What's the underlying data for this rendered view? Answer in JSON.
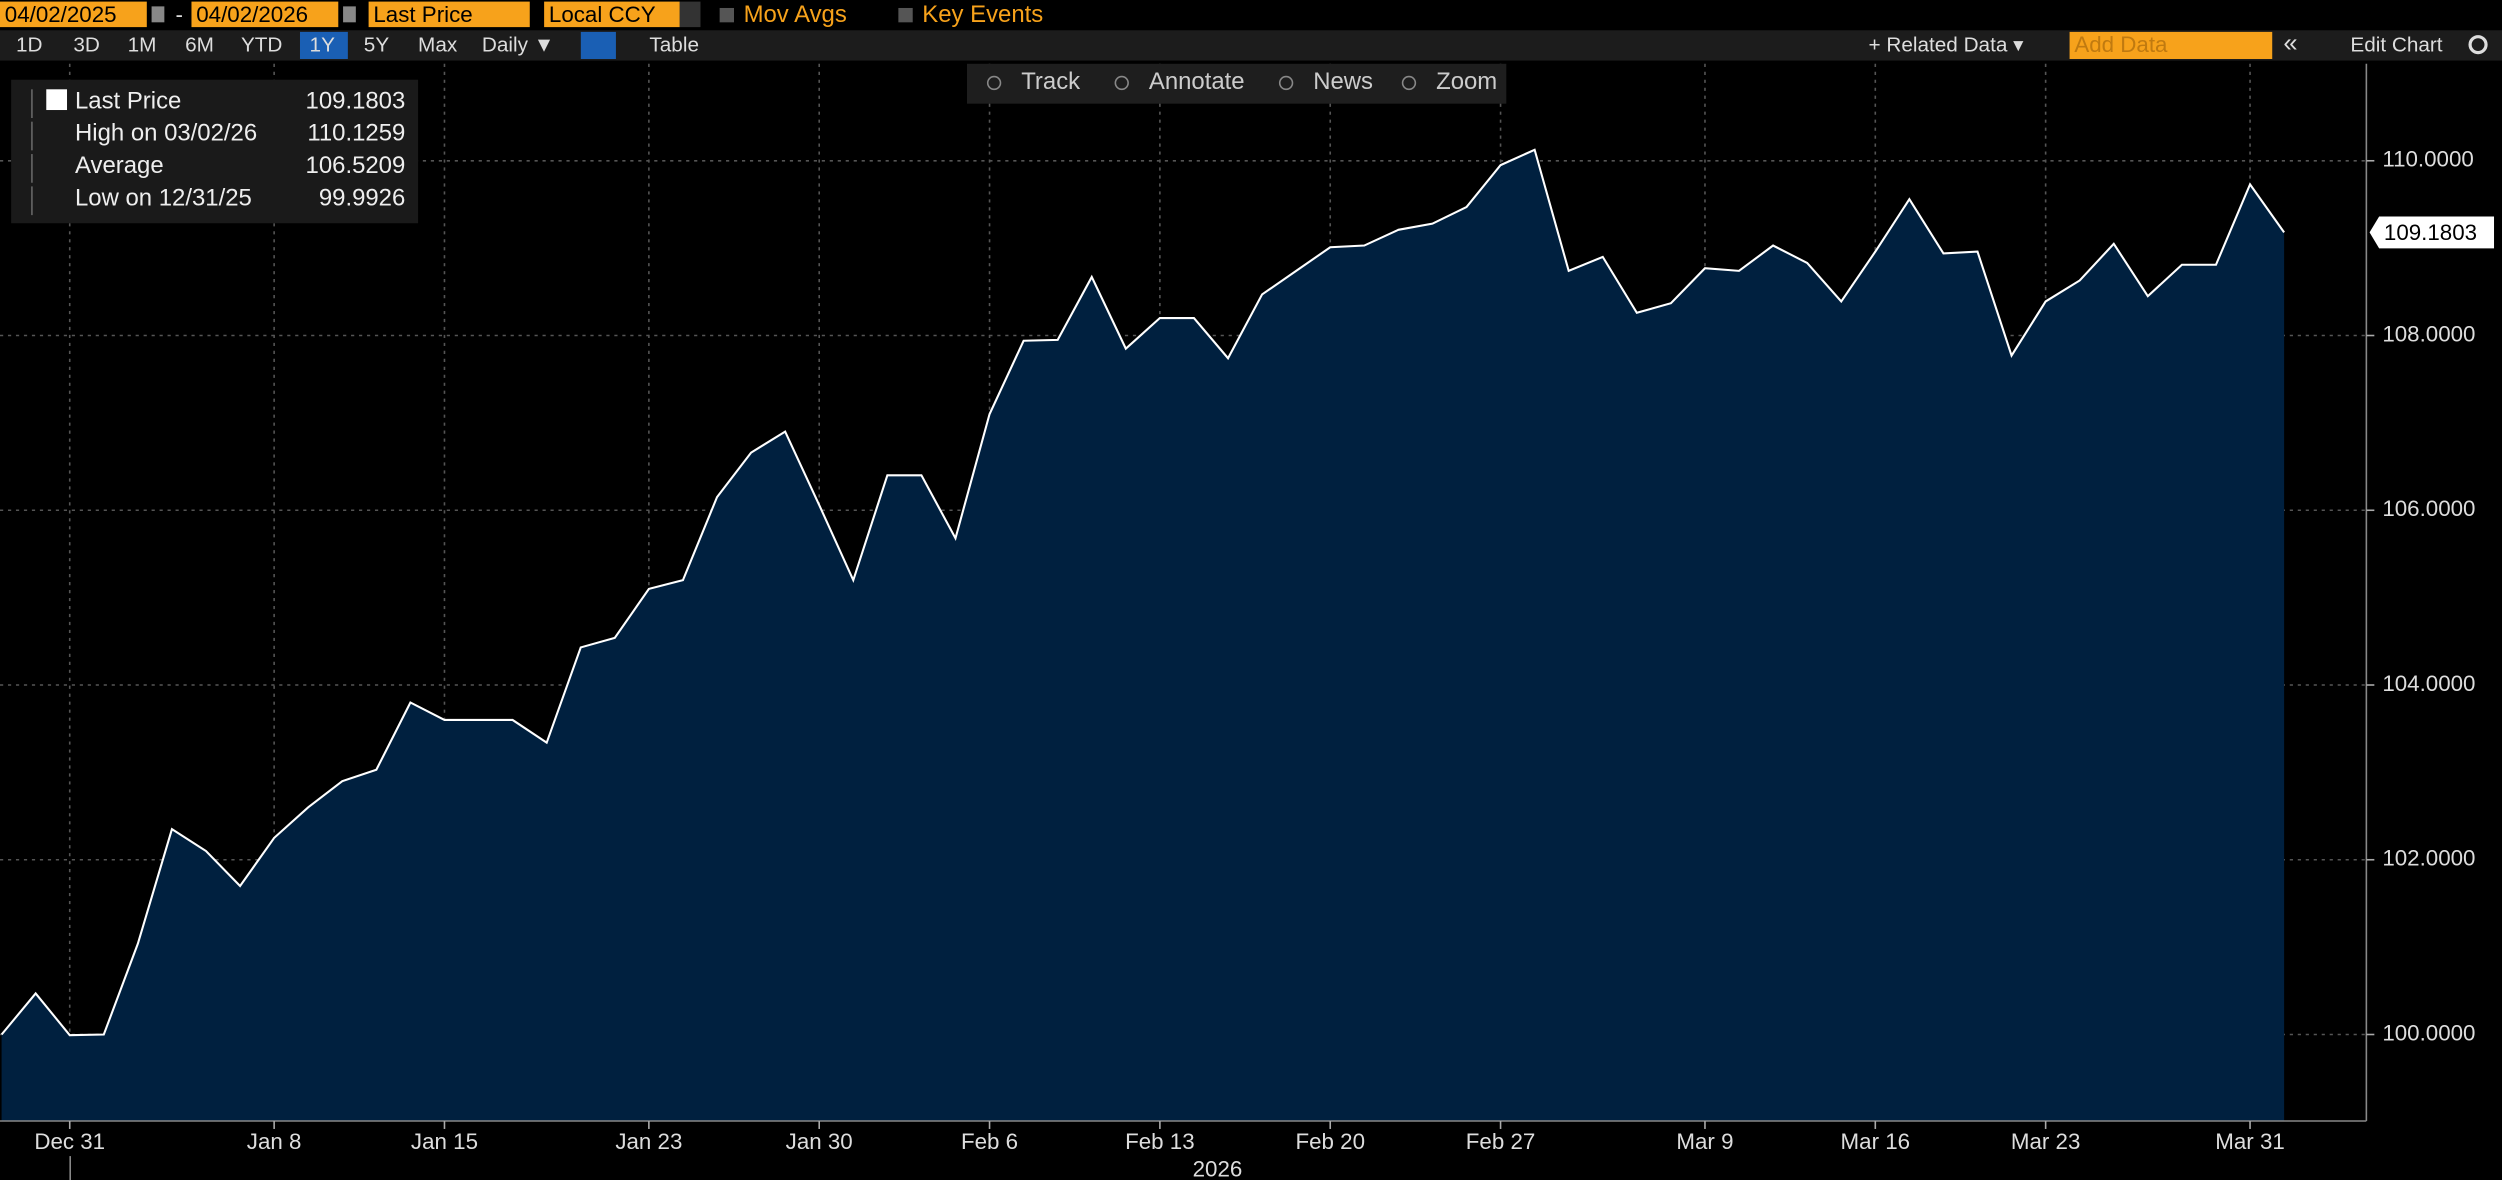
{
  "toolbar": {
    "start_date": "04/02/2025",
    "separator": "-",
    "end_date": "04/02/2026",
    "field": "Last Price",
    "currency": "Local CCY",
    "mov_avgs": "Mov Avgs",
    "key_events": "Key Events",
    "periods": [
      "1D",
      "3D",
      "1M",
      "6M",
      "YTD",
      "1Y",
      "5Y",
      "Max"
    ],
    "selected_period": "1Y",
    "frequency": "Daily ▼",
    "table": "Table",
    "related_data": "+ Related Data ▾",
    "add_data": "Add Data",
    "collapse": "«",
    "edit_chart": "Edit Chart",
    "tools": [
      "Track",
      "Annotate",
      "News",
      "Zoom"
    ]
  },
  "chart_data": {
    "type": "area",
    "categories": [
      null,
      null,
      "Dec 31",
      null,
      null,
      null,
      null,
      null,
      "Jan 8",
      null,
      null,
      null,
      null,
      "Jan 15",
      null,
      null,
      null,
      null,
      null,
      "Jan 23",
      null,
      null,
      null,
      null,
      "Jan 30",
      null,
      null,
      null,
      null,
      "Feb 6",
      null,
      null,
      null,
      null,
      "Feb 13",
      null,
      null,
      null,
      null,
      "Feb 20",
      null,
      null,
      null,
      null,
      "Feb 27",
      null,
      null,
      null,
      null,
      null,
      "Mar 9",
      null,
      null,
      null,
      null,
      "Mar 16",
      null,
      null,
      null,
      null,
      "Mar 23",
      null,
      null,
      null,
      null,
      null,
      "Mar 31",
      null
    ],
    "x_year": "2026",
    "values": [
      100.0,
      100.47,
      99.9926,
      100.0,
      101.04,
      102.35,
      102.1,
      101.7,
      102.25,
      102.6,
      102.9,
      103.03,
      103.8,
      103.6,
      103.6,
      103.6,
      103.34,
      104.43,
      104.54,
      105.1,
      105.2,
      106.15,
      106.66,
      106.9,
      106.06,
      105.2,
      106.4,
      106.4,
      105.68,
      107.1,
      107.94,
      107.95,
      108.67,
      107.85,
      108.2,
      108.2,
      107.74,
      108.47,
      108.74,
      109.01,
      109.03,
      109.21,
      109.28,
      109.47,
      109.95,
      110.1259,
      108.74,
      108.9,
      108.26,
      108.37,
      108.77,
      108.74,
      109.03,
      108.83,
      108.39,
      108.96,
      109.56,
      108.94,
      108.96,
      107.77,
      108.39,
      108.63,
      109.05,
      108.45,
      108.81,
      108.81,
      109.73,
      109.1803
    ],
    "color": "#ffffff",
    "fill": "#00203f",
    "ylim": [
      99.01,
      111.11
    ],
    "yticks": [
      {
        "value": 100,
        "label": "100.0000"
      },
      {
        "value": 102,
        "label": "102.0000"
      },
      {
        "value": 104,
        "label": "104.0000"
      },
      {
        "value": 106,
        "label": "106.0000"
      },
      {
        "value": 108,
        "label": "108.0000"
      },
      {
        "value": 110,
        "label": "110.0000"
      }
    ],
    "grid": true,
    "legend": [
      {
        "name": "Last Price",
        "value": 109.1803
      },
      {
        "name": "High on 03/02/26",
        "value": 110.1259
      },
      {
        "name": "Average",
        "value": 106.5209
      },
      {
        "name": "Low on 12/31/25",
        "value": 99.9926
      }
    ]
  }
}
